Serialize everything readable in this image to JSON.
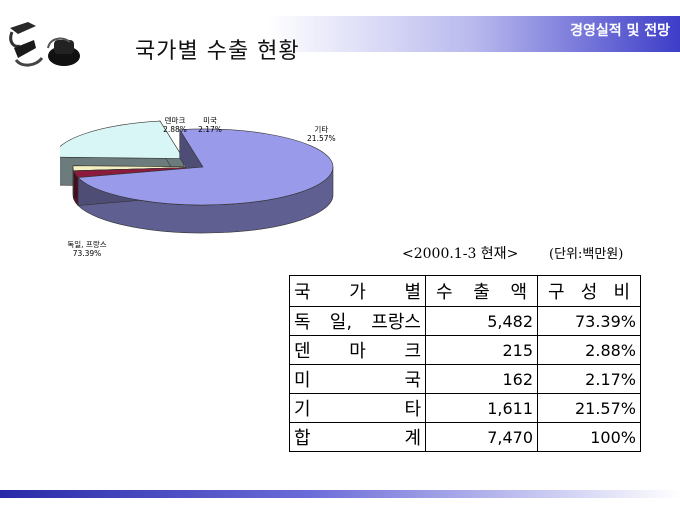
{
  "header": {
    "brand": "경영실적 및 전망",
    "title": "국가별 수출 현황"
  },
  "note": {
    "date": "<2000.1-3 현재>",
    "unit": "(단위:백만원)"
  },
  "table": {
    "headers": [
      [
        "국",
        "가",
        "별"
      ],
      [
        "수",
        "출",
        "액"
      ],
      [
        "구",
        "성",
        "비"
      ]
    ],
    "rows": [
      {
        "label": [
          "독",
          "일,",
          "프랑스"
        ],
        "amount": "5,482",
        "share": "73.39%"
      },
      {
        "label": [
          "덴",
          "마",
          "크"
        ],
        "amount": "215",
        "share": "2.88%"
      },
      {
        "label": [
          "미",
          "국"
        ],
        "amount": "162",
        "share": "2.17%"
      },
      {
        "label": [
          "기",
          "타"
        ],
        "amount": "1,611",
        "share": "21.57%"
      },
      {
        "label": [
          "합",
          "계"
        ],
        "amount": "7,470",
        "share": "100%"
      }
    ]
  },
  "chart_data": {
    "type": "pie",
    "title": "",
    "categories": [
      "독일, 프랑스",
      "덴마크",
      "미국",
      "기타"
    ],
    "values": [
      73.39,
      2.88,
      2.17,
      21.57
    ],
    "labels": [
      "73.39%",
      "2.88%",
      "2.17%",
      "21.57%"
    ],
    "colors": [
      "#9a9aea",
      "#8b1a3c",
      "#f4f0c0",
      "#d8f6f6"
    ],
    "exploded": "기타"
  }
}
